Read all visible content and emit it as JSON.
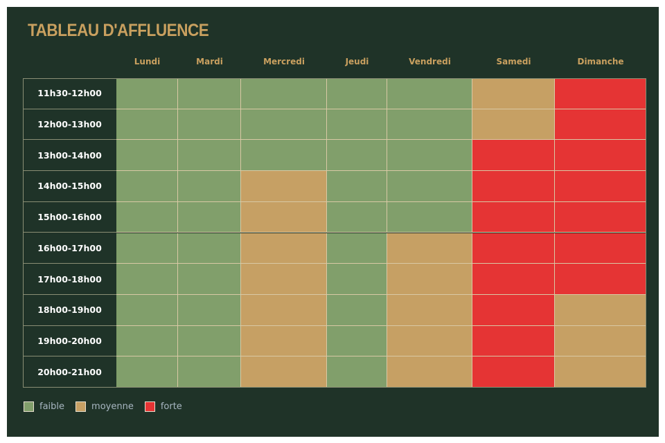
{
  "chart_data": {
    "type": "heatmap",
    "title": "TABLEAU D'AFFLUENCE",
    "columns": [
      "Lundi",
      "Mardi",
      "Mercredi",
      "Jeudi",
      "Vendredi",
      "Samedi",
      "Dimanche"
    ],
    "rows": [
      "11h30-12h00",
      "12h00-13h00",
      "13h00-14h00",
      "14h00-15h00",
      "15h00-16h00",
      "16h00-17h00",
      "17h00-18h00",
      "18h00-19h00",
      "19h00-20h00",
      "20h00-21h00"
    ],
    "levels": {
      "faible": {
        "label": "faible",
        "color": "#819f6b"
      },
      "moyenne": {
        "label": "moyenne",
        "color": "#c6a064"
      },
      "forte": {
        "label": "forte",
        "color": "#e53434"
      }
    },
    "legend_order": [
      "faible",
      "moyenne",
      "forte"
    ],
    "legend_position": "bottom-left",
    "values": [
      [
        "faible",
        "faible",
        "faible",
        "faible",
        "faible",
        "moyenne",
        "forte"
      ],
      [
        "faible",
        "faible",
        "faible",
        "faible",
        "faible",
        "moyenne",
        "forte"
      ],
      [
        "faible",
        "faible",
        "faible",
        "faible",
        "faible",
        "forte",
        "forte"
      ],
      [
        "faible",
        "faible",
        "moyenne",
        "faible",
        "faible",
        "forte",
        "forte"
      ],
      [
        "faible",
        "faible",
        "moyenne",
        "faible",
        "faible",
        "forte",
        "forte"
      ],
      [
        "faible",
        "faible",
        "moyenne",
        "faible",
        "moyenne",
        "forte",
        "forte"
      ],
      [
        "faible",
        "faible",
        "moyenne",
        "faible",
        "moyenne",
        "forte",
        "forte"
      ],
      [
        "faible",
        "faible",
        "moyenne",
        "faible",
        "moyenne",
        "forte",
        "moyenne"
      ],
      [
        "faible",
        "faible",
        "moyenne",
        "faible",
        "moyenne",
        "forte",
        "moyenne"
      ],
      [
        "faible",
        "faible",
        "moyenne",
        "faible",
        "moyenne",
        "forte",
        "moyenne"
      ]
    ]
  }
}
